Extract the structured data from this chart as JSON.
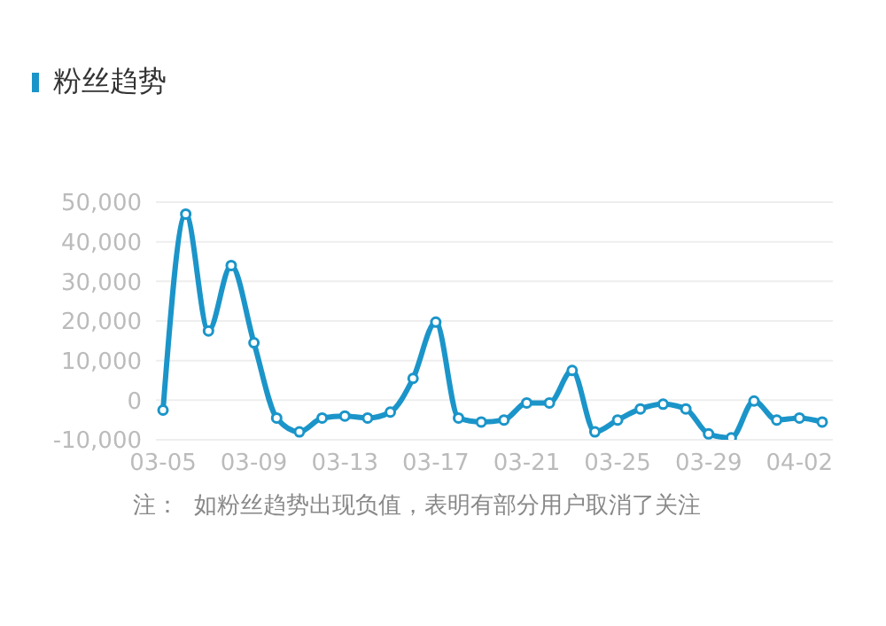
{
  "chart_data": {
    "type": "line",
    "title": "粉丝趋势",
    "categories": [
      "03-05",
      null,
      null,
      null,
      "03-09",
      null,
      null,
      null,
      "03-13",
      null,
      null,
      null,
      "03-17",
      null,
      null,
      null,
      "03-21",
      null,
      null,
      null,
      "03-25",
      null,
      null,
      null,
      "03-29",
      null,
      null,
      null,
      "04-02",
      null
    ],
    "series": [
      {
        "color": "#1b95c9",
        "values": [
          -2500,
          47000,
          17500,
          34000,
          14500,
          -4500,
          -8000,
          -4500,
          -4000,
          -4500,
          -3000,
          5500,
          19700,
          -4500,
          -5500,
          -5000,
          -700,
          -700,
          7500,
          -8000,
          -5000,
          -2200,
          -1000,
          -2200,
          -8500,
          -9500,
          -200,
          -5000,
          -4500,
          -5500
        ]
      }
    ],
    "ylim": [
      -10000,
      50000
    ],
    "yticks": [
      {
        "value": -10000,
        "label": "-10,000"
      },
      0,
      {
        "value": 10000,
        "label": "10,000"
      },
      {
        "value": 20000,
        "label": "20,000"
      },
      {
        "value": 30000,
        "label": "30,000"
      },
      {
        "value": 40000,
        "label": "40,000"
      },
      {
        "value": 50000,
        "label": "50,000"
      }
    ],
    "grid": "y",
    "legend": false,
    "marker": "circle",
    "line_style": "solid",
    "annotations": [
      "注：  如粉丝趋势出现负值，表明有部分用户取消了关注"
    ]
  }
}
